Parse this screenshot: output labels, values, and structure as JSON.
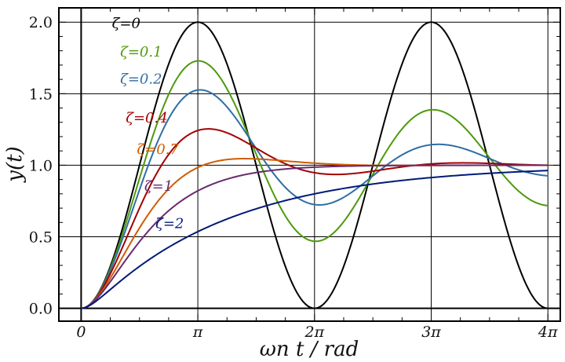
{
  "chart_data": {
    "type": "line",
    "title": "",
    "xlabel": "ωn t / rad",
    "ylabel": "y(t)",
    "xlim": [
      -0.6,
      12.9
    ],
    "ylim": [
      -0.09,
      2.1
    ],
    "grid": true,
    "x_ticks": [
      {
        "value": 0,
        "label": "0"
      },
      {
        "value": 3.14159,
        "label": "π"
      },
      {
        "value": 6.28319,
        "label": "2π"
      },
      {
        "value": 9.42478,
        "label": "3π"
      },
      {
        "value": 12.56637,
        "label": "4π"
      }
    ],
    "y_ticks": [
      {
        "value": 0.0,
        "label": "0.0"
      },
      {
        "value": 0.5,
        "label": "0.5"
      },
      {
        "value": 1.0,
        "label": "1.0"
      },
      {
        "value": 1.5,
        "label": "1.5"
      },
      {
        "value": 2.0,
        "label": "2.0"
      }
    ],
    "series": [
      {
        "name": "ζ=0",
        "zeta": 0,
        "color": "#000000",
        "label_at": [
          0.83,
          1.96
        ]
      },
      {
        "name": "ζ=0.1",
        "zeta": 0.1,
        "color": "#4d9a0c",
        "label_at": [
          1.05,
          1.76
        ]
      },
      {
        "name": "ζ=0.2",
        "zeta": 0.2,
        "color": "#2e6ea6",
        "label_at": [
          1.05,
          1.57
        ]
      },
      {
        "name": "ζ=0.4",
        "zeta": 0.4,
        "color": "#a30000",
        "label_at": [
          1.2,
          1.3
        ]
      },
      {
        "name": "ζ=0.7",
        "zeta": 0.7,
        "color": "#d05c00",
        "label_at": [
          1.5,
          1.08
        ]
      },
      {
        "name": "ζ=1",
        "zeta": 1,
        "color": "#6a2a6e",
        "label_at": [
          1.7,
          0.82
        ]
      },
      {
        "name": "ζ=2",
        "zeta": 2,
        "color": "#001a78",
        "label_at": [
          2.0,
          0.56
        ]
      }
    ]
  }
}
